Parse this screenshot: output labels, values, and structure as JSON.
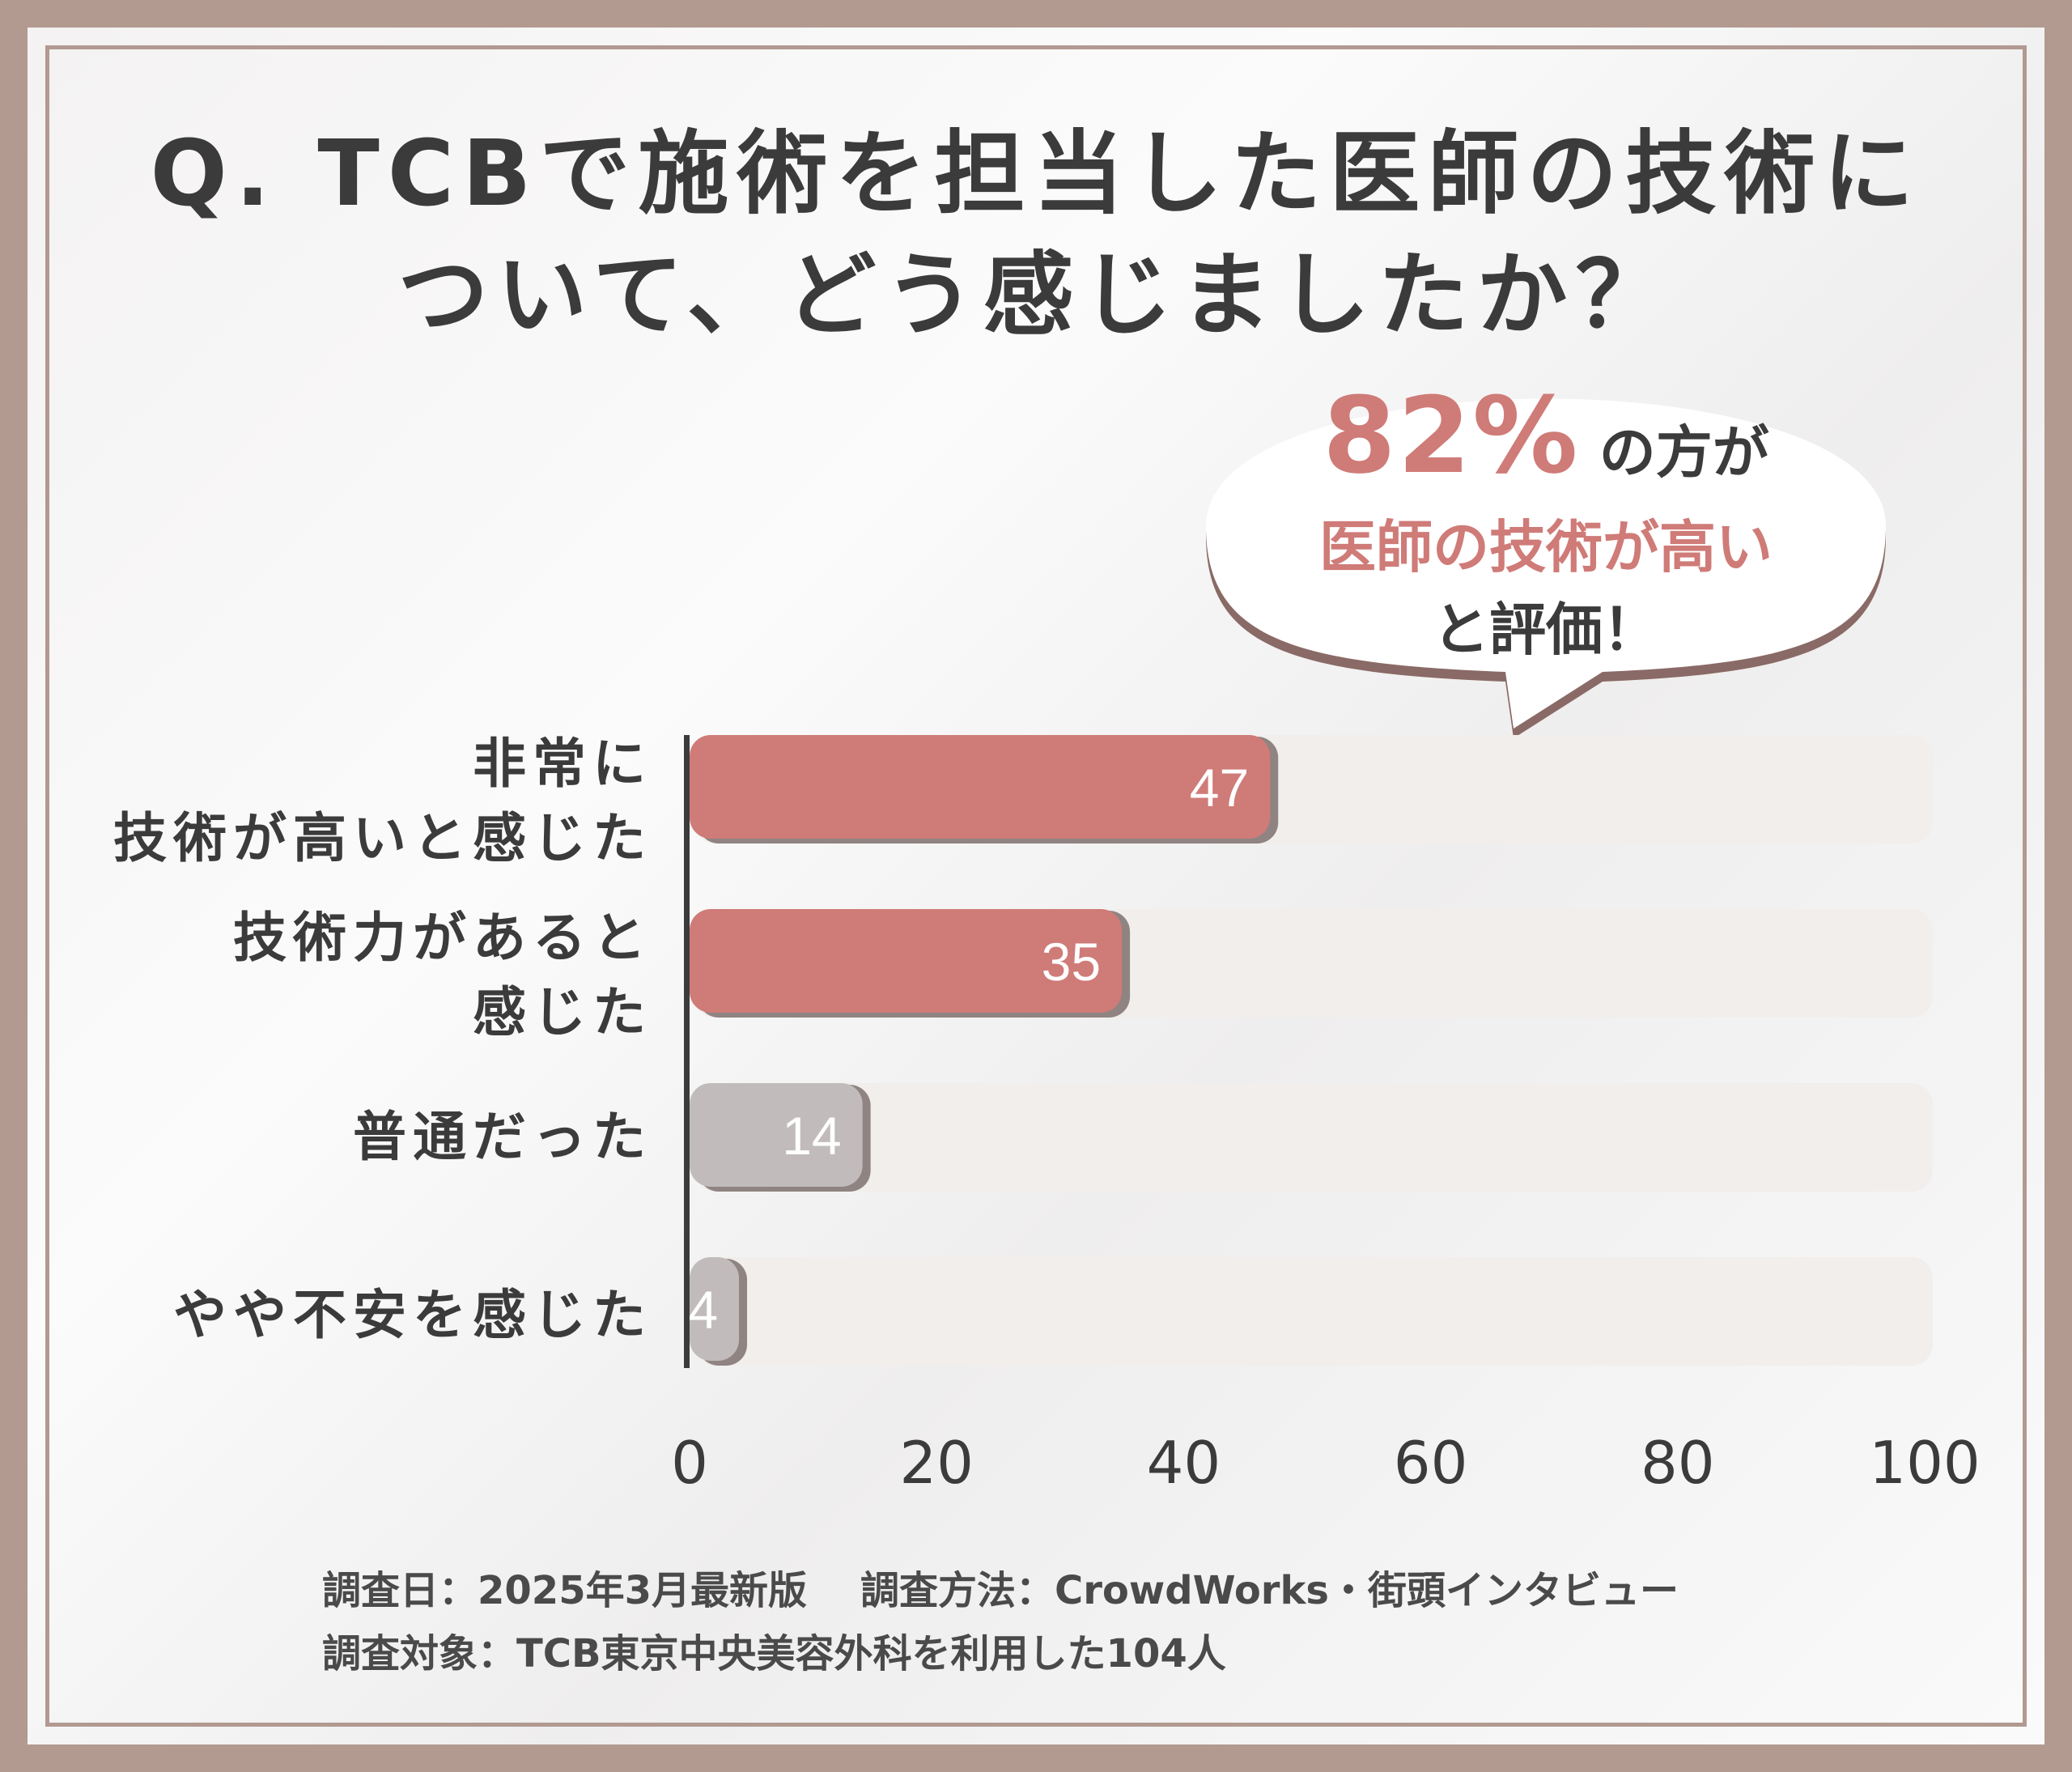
{
  "title": {
    "line1": "Q. TCBで施術を担当した医師の技術に",
    "line2": "ついて、どう感じましたか？"
  },
  "callout": {
    "percent": "82%",
    "line1_suffix": "の方が",
    "line2": "医師の技術が高い",
    "line3": "と評価！"
  },
  "chart_data": {
    "type": "bar",
    "orientation": "horizontal",
    "categories": [
      [
        "非常に",
        "技術が高いと感じた"
      ],
      [
        "技術力があると",
        "感じた"
      ],
      [
        "普通だった"
      ],
      [
        "やや不安を感じた"
      ]
    ],
    "values": [
      47,
      35,
      14,
      4
    ],
    "value_labels": [
      "47",
      "35",
      "14",
      "4"
    ],
    "xlim": [
      0,
      100
    ],
    "xticks": [
      0,
      20,
      40,
      60,
      80,
      100
    ],
    "bar_colors": [
      "#cf7b78",
      "#cf7b78",
      "#c1bcbb",
      "#c1bcbb"
    ],
    "track_color": "#f1eeec",
    "grid": false,
    "legend": "none"
  },
  "footer": {
    "date": "調査日：2025年3月最新版",
    "method": "調査方法：CrowdWorks・街頭インタビュー",
    "target": "調査対象：TCB東京中央美容外科を利用した104人"
  }
}
